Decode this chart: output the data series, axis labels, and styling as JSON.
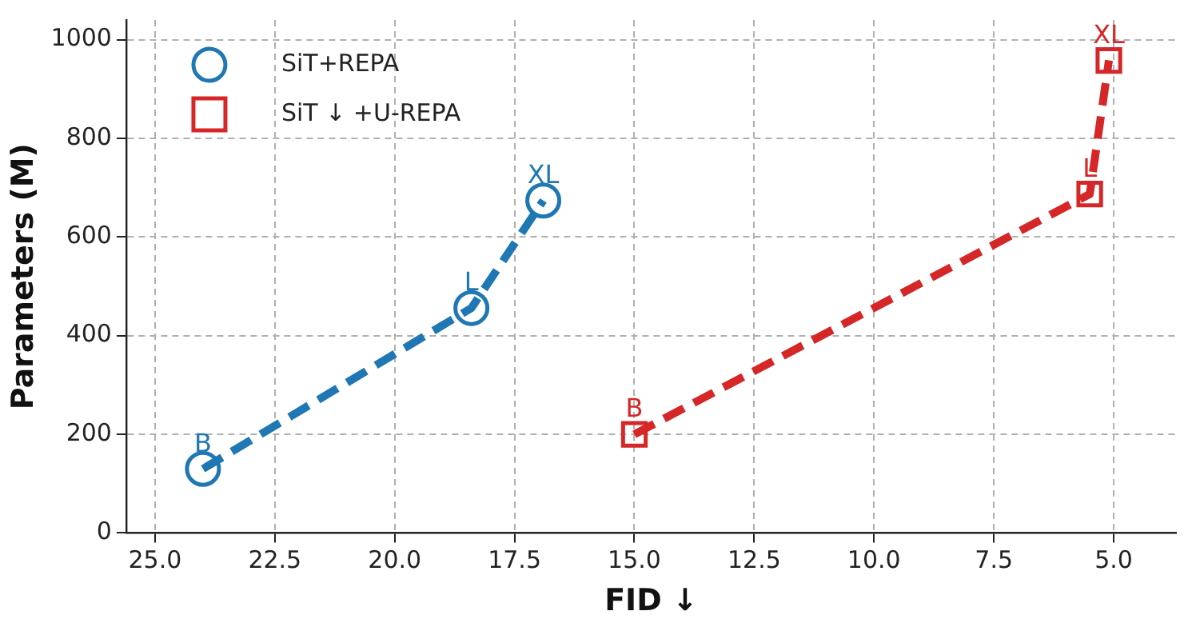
{
  "chart_data": {
    "type": "line",
    "xlabel": "FID ↓",
    "ylabel": "Parameters (M)",
    "xlim": [
      25.6,
      3.7
    ],
    "xticks": [
      {
        "value": 25,
        "label": "25.0"
      },
      {
        "value": 22.5,
        "label": "22.5"
      },
      {
        "value": 20,
        "label": "20.0"
      },
      {
        "value": 17.5,
        "label": "17.5"
      },
      {
        "value": 15,
        "label": "15.0"
      },
      {
        "value": 12.5,
        "label": "12.5"
      },
      {
        "value": 10,
        "label": "10.0"
      },
      {
        "value": 7.5,
        "label": "7.5"
      },
      {
        "value": 5,
        "label": "5.0"
      }
    ],
    "ylim": [
      0,
      1040
    ],
    "yticks": [
      0,
      200,
      400,
      600,
      800,
      1000
    ],
    "grid": true,
    "legend": "top left",
    "line_style": "dashed",
    "series": [
      {
        "name": "SiT+REPA",
        "color": "#1f77b4",
        "marker": "circle",
        "x": [
          24.0,
          18.4,
          16.9
        ],
        "values": [
          130,
          456,
          674
        ],
        "value_labels": [
          "B",
          "L",
          "XL"
        ]
      },
      {
        "name": "SiT ↓ +U-REPA",
        "color": "#d62728",
        "marker": "square",
        "x": [
          15.0,
          5.5,
          5.1
        ],
        "values": [
          200,
          687,
          958
        ],
        "value_labels": [
          "B",
          "L",
          "XL"
        ]
      }
    ]
  }
}
